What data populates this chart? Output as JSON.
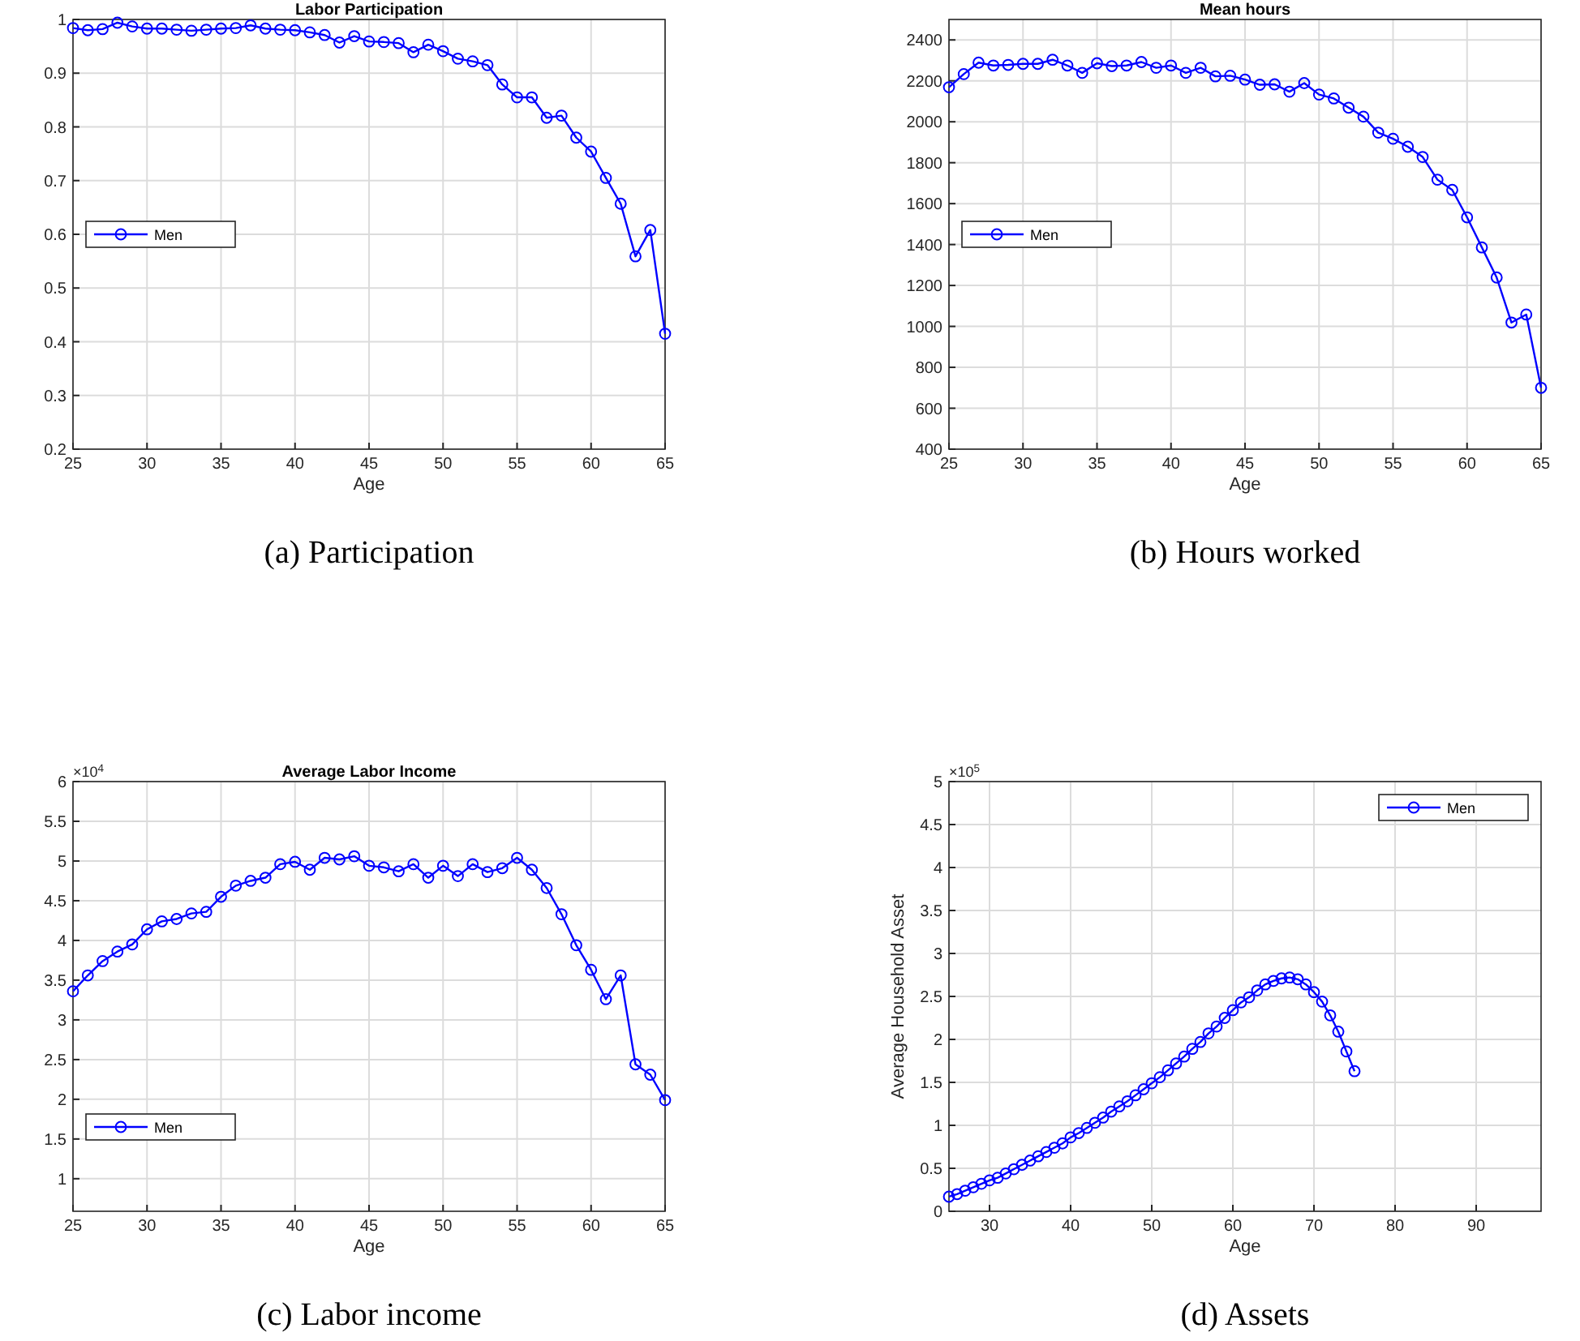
{
  "chart_data": [
    {
      "type": "line",
      "title": "Labor Participation",
      "xlabel": "Age",
      "annotations": [
        "(a) Participation"
      ],
      "x": [
        25,
        26,
        27,
        28,
        29,
        30,
        31,
        32,
        33,
        34,
        35,
        36,
        37,
        38,
        39,
        40,
        41,
        42,
        43,
        44,
        45,
        46,
        47,
        48,
        49,
        50,
        51,
        52,
        53,
        54,
        55,
        56,
        57,
        58,
        59,
        60,
        61,
        62,
        63,
        64,
        65
      ],
      "series": [
        {
          "name": "Men",
          "color": "#0000ff",
          "values": [
            0.984,
            0.98,
            0.982,
            0.994,
            0.987,
            0.983,
            0.983,
            0.981,
            0.979,
            0.981,
            0.983,
            0.984,
            0.989,
            0.983,
            0.981,
            0.98,
            0.976,
            0.971,
            0.957,
            0.969,
            0.959,
            0.958,
            0.956,
            0.939,
            0.953,
            0.941,
            0.927,
            0.922,
            0.915,
            0.879,
            0.855,
            0.855,
            0.817,
            0.821,
            0.78,
            0.754,
            0.705,
            0.657,
            0.559,
            0.608,
            0.415
          ]
        }
      ],
      "xlim": [
        25,
        65
      ],
      "xticks": [
        25,
        30,
        35,
        40,
        45,
        50,
        55,
        60,
        65
      ],
      "ylim": [
        0.2,
        1
      ],
      "yticks": [
        0.2,
        0.3,
        0.4,
        0.5,
        0.6,
        0.7,
        0.8,
        0.9,
        1
      ],
      "grid": true,
      "legend": "left",
      "marker": "circle",
      "line_style": "solid"
    },
    {
      "type": "line",
      "title": "Mean hours",
      "xlabel": "Age",
      "annotations": [
        "(b) Hours worked"
      ],
      "x": [
        25,
        26,
        27,
        28,
        29,
        30,
        31,
        32,
        33,
        34,
        35,
        36,
        37,
        38,
        39,
        40,
        41,
        42,
        43,
        44,
        45,
        46,
        47,
        48,
        49,
        50,
        51,
        52,
        53,
        54,
        55,
        56,
        57,
        58,
        59,
        60,
        61,
        62,
        63,
        64,
        65
      ],
      "series": [
        {
          "name": "Men",
          "color": "#0000ff",
          "values": [
            2169,
            2233,
            2289,
            2275,
            2278,
            2283,
            2283,
            2303,
            2275,
            2239,
            2286,
            2272,
            2275,
            2292,
            2264,
            2275,
            2239,
            2264,
            2222,
            2225,
            2206,
            2181,
            2183,
            2147,
            2189,
            2133,
            2114,
            2069,
            2025,
            1947,
            1917,
            1878,
            1828,
            1717,
            1667,
            1533,
            1386,
            1239,
            1019,
            1058,
            700
          ]
        }
      ],
      "xlim": [
        25,
        65
      ],
      "xticks": [
        25,
        30,
        35,
        40,
        45,
        50,
        55,
        60,
        65
      ],
      "ylim": [
        400,
        2500
      ],
      "yticks": [
        400,
        600,
        800,
        1000,
        1200,
        1400,
        1600,
        1800,
        2000,
        2200,
        2400
      ],
      "grid": true,
      "legend": "left",
      "marker": "circle",
      "line_style": "solid"
    },
    {
      "type": "line",
      "title": "Average Labor Income",
      "xlabel": "Age",
      "annotations": [
        "×10$^{4}$",
        "(c) Labor income"
      ],
      "x": [
        25,
        26,
        27,
        28,
        29,
        30,
        31,
        32,
        33,
        34,
        35,
        36,
        37,
        38,
        39,
        40,
        41,
        42,
        43,
        44,
        45,
        46,
        47,
        48,
        49,
        50,
        51,
        52,
        53,
        54,
        55,
        56,
        57,
        58,
        59,
        60,
        61,
        62,
        63,
        64,
        65
      ],
      "series": [
        {
          "name": "Men",
          "color": "#0000ff",
          "values": [
            3.36,
            3.56,
            3.74,
            3.86,
            3.95,
            4.14,
            4.24,
            4.27,
            4.34,
            4.36,
            4.55,
            4.69,
            4.75,
            4.79,
            4.96,
            4.99,
            4.89,
            5.04,
            5.02,
            5.06,
            4.94,
            4.92,
            4.87,
            4.96,
            4.79,
            4.94,
            4.81,
            4.96,
            4.86,
            4.91,
            5.04,
            4.89,
            4.66,
            4.33,
            3.94,
            3.63,
            3.26,
            3.56,
            2.44,
            2.31,
            1.99
          ]
        }
      ],
      "xlim": [
        25,
        65
      ],
      "xticks": [
        25,
        30,
        35,
        40,
        45,
        50,
        55,
        60,
        65
      ],
      "ylim": [
        0.59,
        6
      ],
      "yticks": [
        1,
        1.5,
        2,
        2.5,
        3,
        3.5,
        4,
        4.5,
        5,
        5.5,
        6
      ],
      "grid": true,
      "legend": "bottom left",
      "marker": "circle",
      "line_style": "solid"
    },
    {
      "type": "line",
      "xlabel": "Age",
      "ylabel": "Average Household Asset",
      "annotations": [
        "×10$^{5}$",
        "(d) Assets"
      ],
      "x": [
        25,
        26,
        27,
        28,
        29,
        30,
        31,
        32,
        33,
        34,
        35,
        36,
        37,
        38,
        39,
        40,
        41,
        42,
        43,
        44,
        45,
        46,
        47,
        48,
        49,
        50,
        51,
        52,
        53,
        54,
        55,
        56,
        57,
        58,
        59,
        60,
        61,
        62,
        63,
        64,
        65,
        66,
        67,
        68,
        69,
        70,
        71,
        72,
        73,
        74,
        75
      ],
      "series": [
        {
          "name": "Men",
          "color": "#0000ff",
          "values": [
            0.17,
            0.2,
            0.24,
            0.28,
            0.32,
            0.36,
            0.39,
            0.44,
            0.49,
            0.54,
            0.59,
            0.64,
            0.69,
            0.74,
            0.79,
            0.86,
            0.91,
            0.97,
            1.03,
            1.09,
            1.16,
            1.22,
            1.28,
            1.35,
            1.42,
            1.49,
            1.56,
            1.64,
            1.72,
            1.8,
            1.89,
            1.97,
            2.07,
            2.15,
            2.25,
            2.34,
            2.43,
            2.49,
            2.57,
            2.64,
            2.68,
            2.71,
            2.72,
            2.7,
            2.64,
            2.55,
            2.44,
            2.28,
            2.09,
            1.86,
            1.63
          ]
        }
      ],
      "xlim": [
        25,
        98
      ],
      "xticks": [
        30,
        40,
        50,
        60,
        70,
        80,
        90
      ],
      "ylim": [
        0,
        5
      ],
      "yticks": [
        0,
        0.5,
        1,
        1.5,
        2,
        2.5,
        3,
        3.5,
        4,
        4.5,
        5
      ],
      "grid": true,
      "legend": "top right",
      "marker": "circle",
      "line_style": "solid"
    }
  ]
}
